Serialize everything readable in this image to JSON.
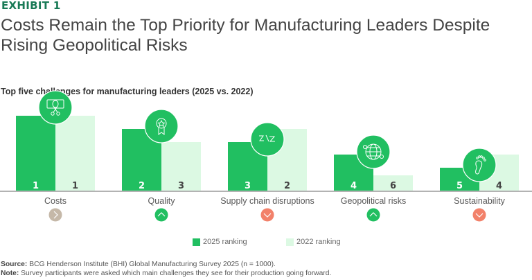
{
  "exhibit_label": "EXHIBIT 1",
  "title": "Costs Remain the Top Priority for Manufacturing Leaders Despite Rising Geopolitical Risks",
  "subtitle": "Top five challenges for manufacturing leaders (2025 vs. 2022)",
  "colors": {
    "rank_2025": "#21BF61",
    "rank_2022": "#DCF9E3",
    "icon_circle": "#21BF61",
    "trend_same": "#C5B8A8",
    "trend_up": "#21BF61",
    "trend_down": "#F2816A",
    "exhibit": "#197A56"
  },
  "chart_data": {
    "type": "bar",
    "title": "Top five challenges for manufacturing leaders (2025 vs. 2022)",
    "xlabel": "",
    "ylabel": "",
    "value_meaning": "ranking (1 = highest priority; taller bar = higher rank)",
    "categories": [
      "Costs",
      "Quality",
      "Supply chain disruptions",
      "Geopolitical risks",
      "Sustainability"
    ],
    "series": [
      {
        "name": "2025 ranking",
        "values": [
          1,
          2,
          3,
          4,
          5
        ]
      },
      {
        "name": "2022 ranking",
        "values": [
          1,
          3,
          2,
          6,
          4
        ]
      }
    ],
    "trends": [
      "same",
      "up",
      "down",
      "up",
      "down"
    ],
    "icons": [
      "money-scissors-icon",
      "award-ribbon-icon",
      "supply-chain-arrows-icon",
      "globe-network-icon",
      "footprint-icon"
    ],
    "legend_position": "bottom",
    "grid": false
  },
  "legend": {
    "items": [
      {
        "label": "2025 ranking"
      },
      {
        "label": "2022 ranking"
      }
    ]
  },
  "footer": {
    "source_label": "Source:",
    "source_text": " BCG Henderson Institute (BHI) Global Manufacturing Survey 2025 (n = 1000).",
    "note_label": "Note:",
    "note_text": " Survey participants were asked which main challenges they see for their production going forward."
  }
}
